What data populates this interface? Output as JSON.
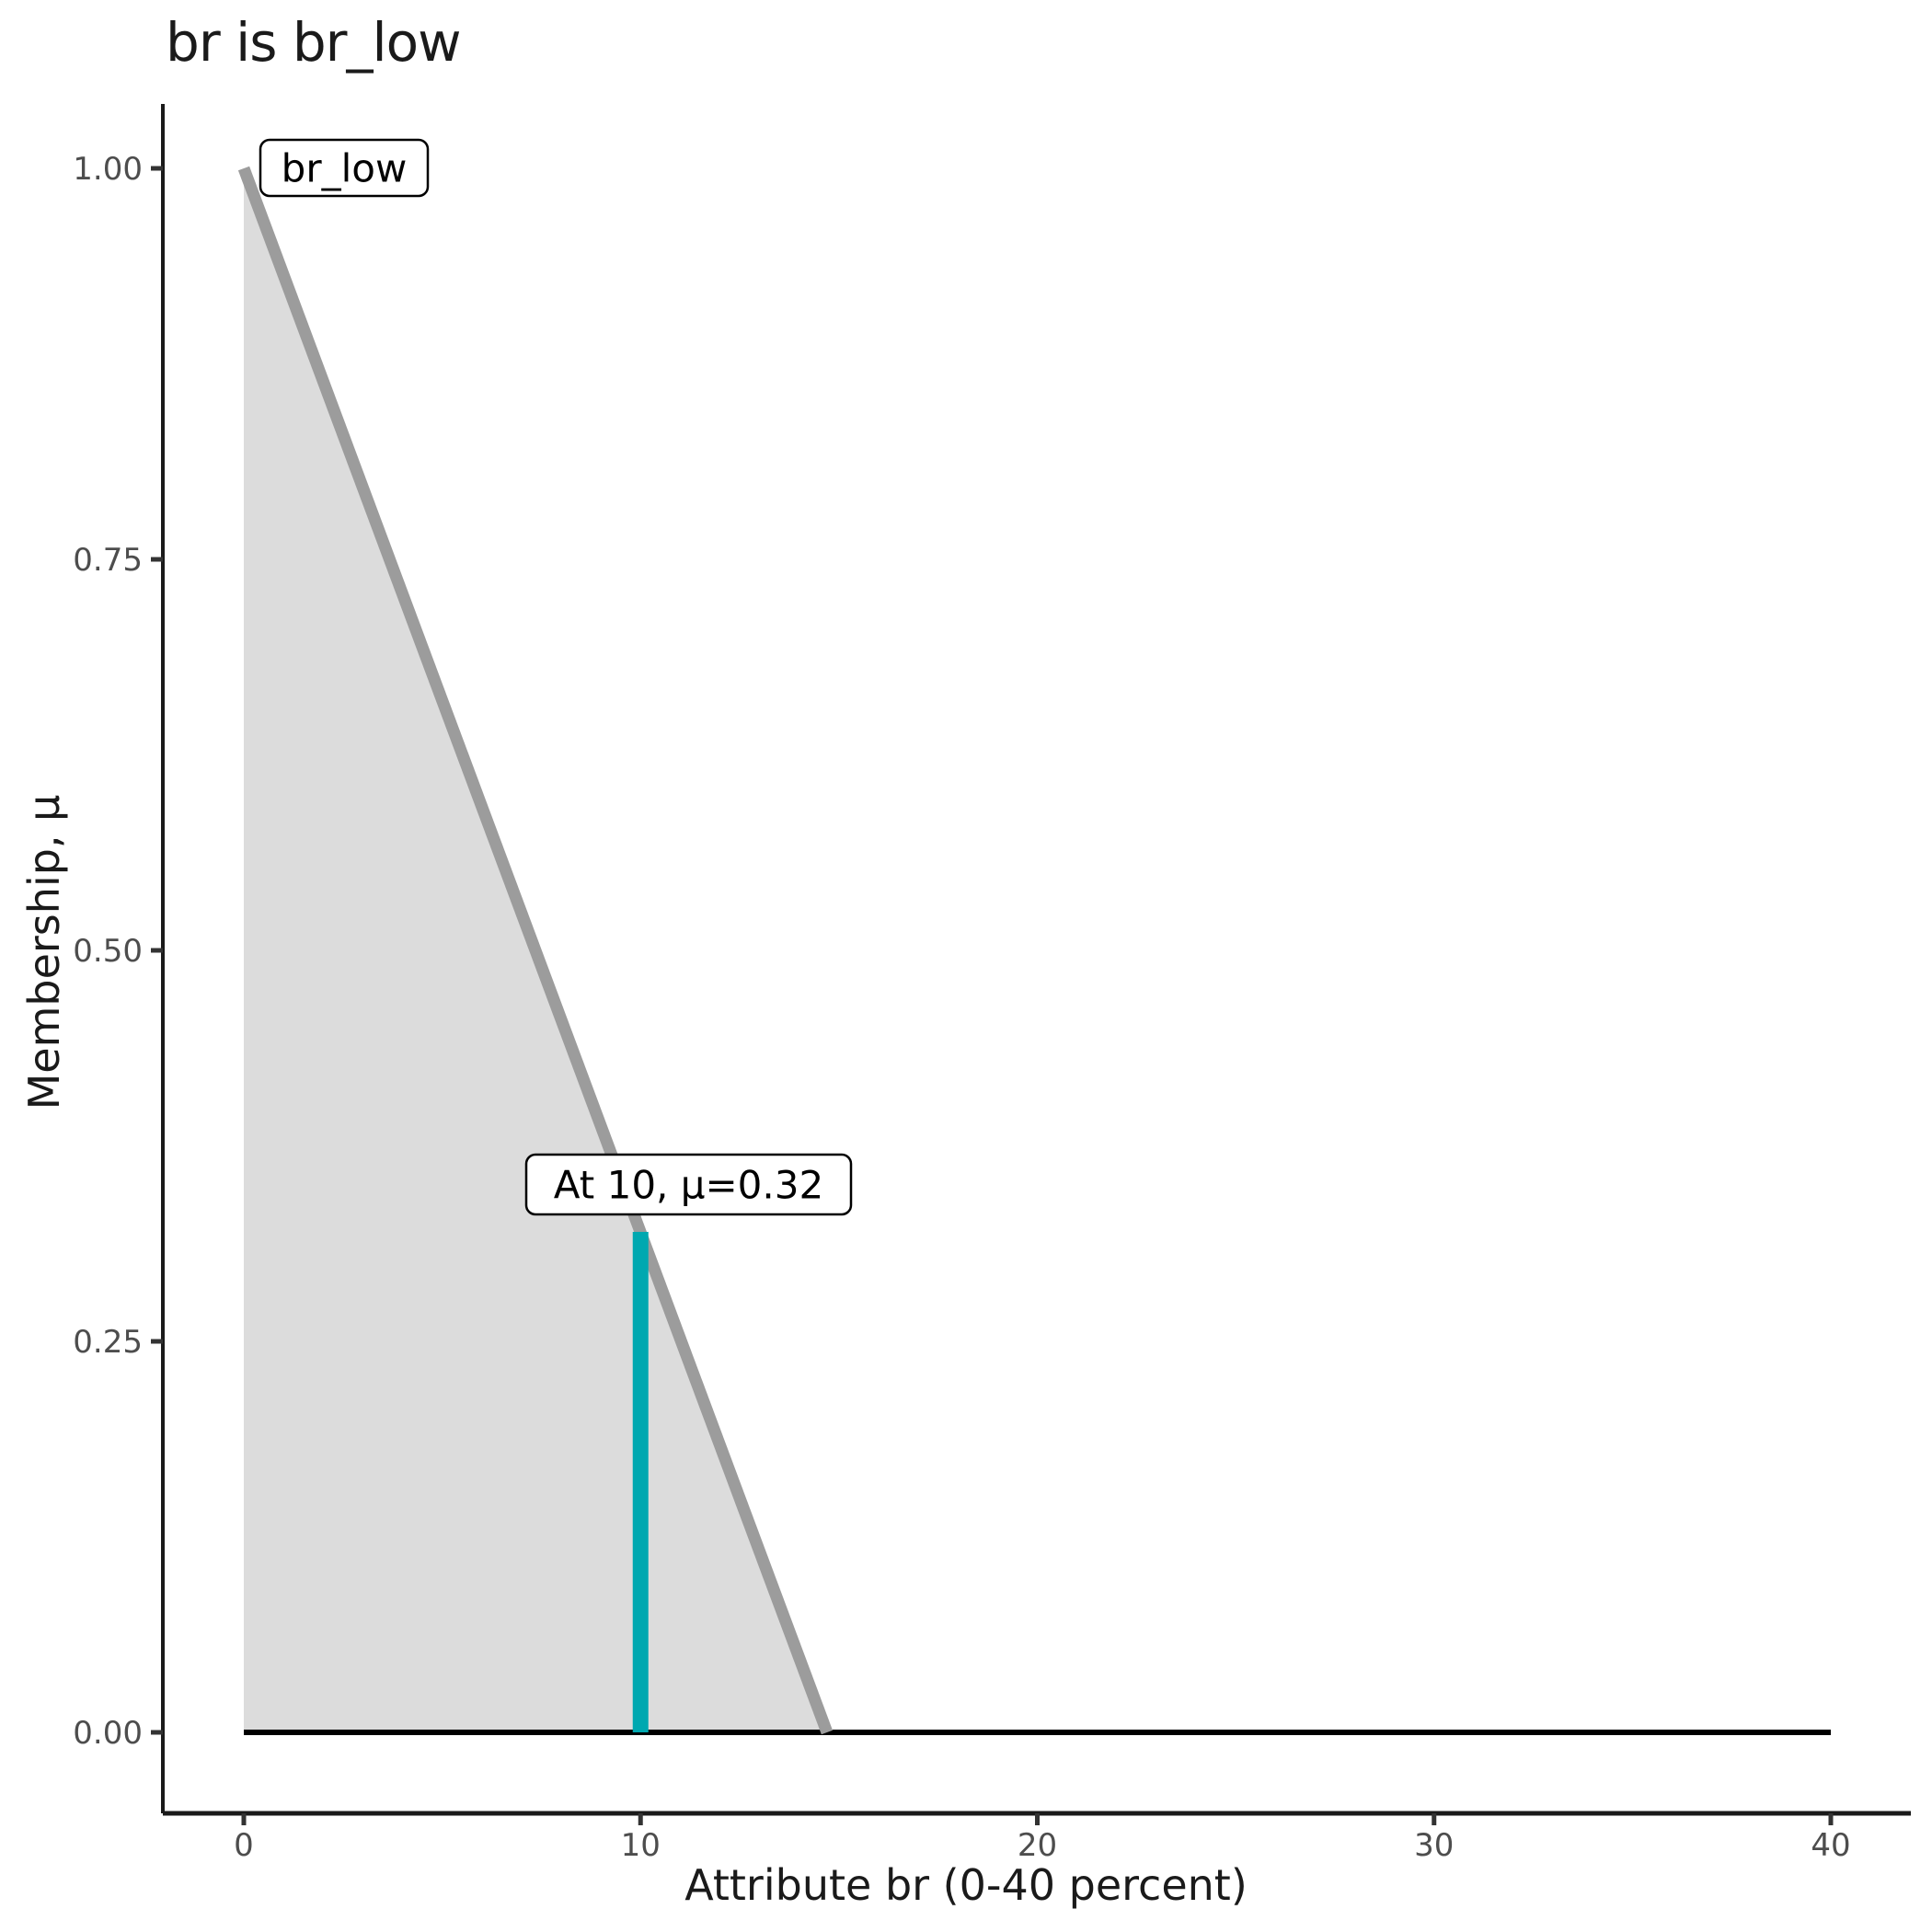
{
  "title": "br is br_low",
  "chart_data": {
    "type": "area",
    "title": "br is br_low",
    "xlabel": "Attribute br (0-40 percent)",
    "ylabel": "Membership, μ",
    "xlim": [
      0,
      40
    ],
    "ylim": [
      0,
      1
    ],
    "grid": "off",
    "legend": "none",
    "x_ticks": {
      "values": [
        0,
        10,
        20,
        30,
        40
      ],
      "labels": [
        "0",
        "10",
        "20",
        "30",
        "40"
      ]
    },
    "y_ticks": {
      "values": [
        0,
        0.25,
        0.5,
        0.75,
        1.0
      ],
      "labels": [
        "0.00",
        "0.25",
        "0.50",
        "0.75",
        "1.00"
      ]
    },
    "membership_function": {
      "name": "br_low",
      "curve": [
        [
          0,
          1.0
        ],
        [
          14.7,
          0
        ]
      ],
      "area": [
        [
          0,
          1.0
        ],
        [
          14.7,
          0
        ],
        [
          0,
          0
        ]
      ],
      "baseline": [
        [
          0,
          0
        ],
        [
          40,
          0
        ]
      ]
    },
    "crisp_input": {
      "x": 10,
      "mu": 0.32
    },
    "annotations": [
      {
        "id": "mf-label",
        "text": "br_low"
      },
      {
        "id": "crisp-label",
        "text": "At 10, μ=0.32"
      }
    ],
    "colors": {
      "area_fill": "#dcdcdc",
      "curve": "#9c9c9c",
      "crisp_line": "#00a8b0",
      "baseline": "#000000",
      "axis": "#1a1a1a",
      "tick_label": "#4d4d4d",
      "annotation_box_fill": "#ffffff",
      "annotation_box_border": "#000000"
    }
  }
}
